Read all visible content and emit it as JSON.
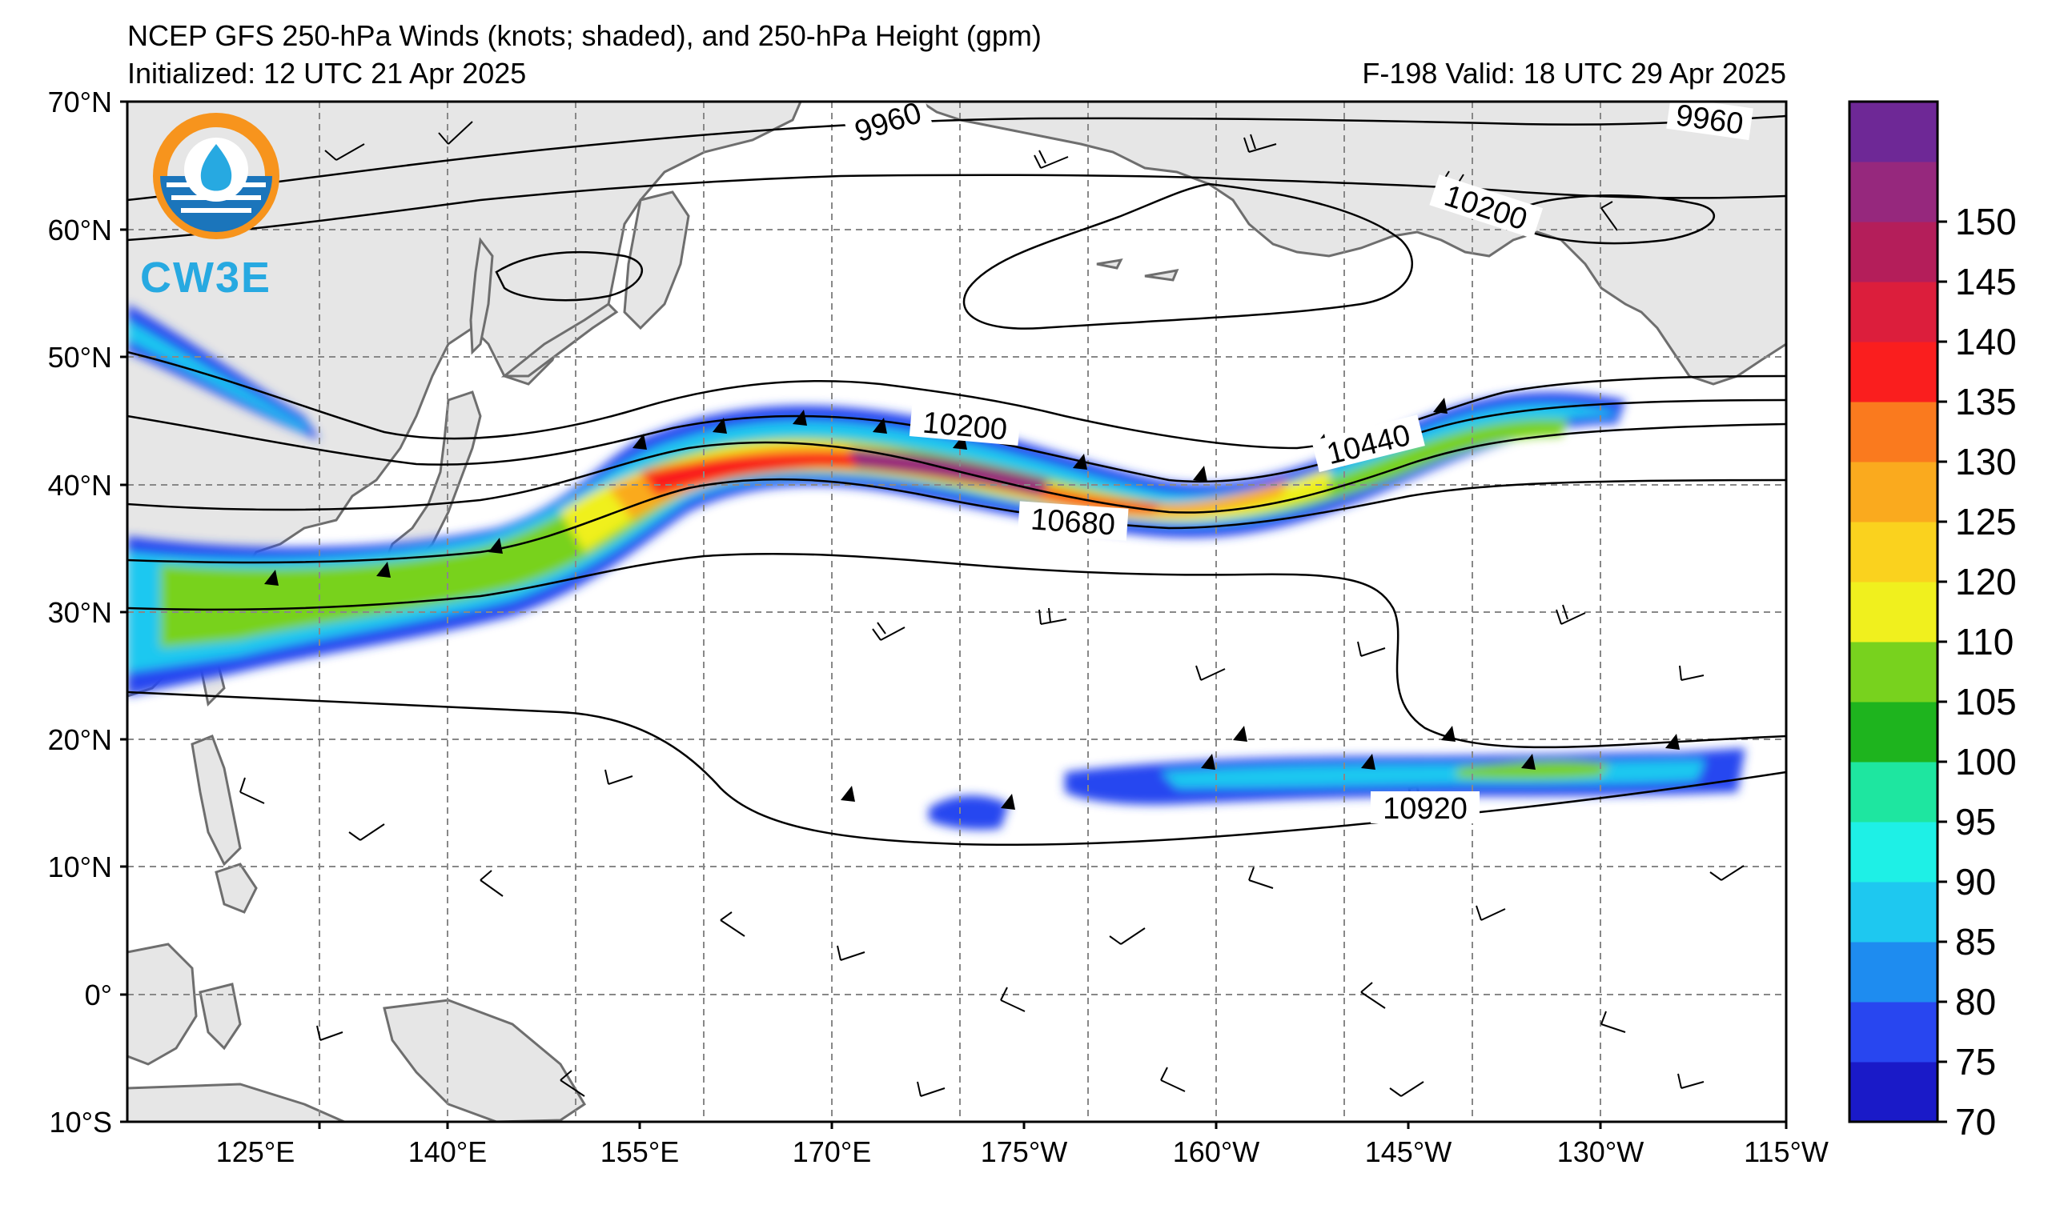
{
  "title": {
    "line1": "NCEP GFS 250-hPa Winds (knots; shaded), and 250-hPa Height (gpm)",
    "line2_left": "Initialized: 12 UTC 21 Apr 2025",
    "line2_right": "F-198  Valid: 18 UTC 29 Apr 2025"
  },
  "logo": {
    "text": "CW3E",
    "colors": [
      "#f7941d",
      "#1b75bb",
      "#27a9e1"
    ]
  },
  "map": {
    "projection": "equirectangular",
    "lon_range": [
      110,
      245
    ],
    "lat_range": [
      -10,
      70
    ],
    "lat_ticks": [
      "70°N",
      "60°N",
      "50°N",
      "40°N",
      "30°N",
      "20°N",
      "10°N",
      "0°",
      "10°S"
    ],
    "lon_ticks": [
      "125°E",
      "140°E",
      "155°E",
      "170°E",
      "175°W",
      "160°W",
      "145°W",
      "130°W",
      "115°W"
    ],
    "land_color": "#e6e6e6",
    "gridlines": "dashed"
  },
  "contour_labels": [
    "9960",
    "9960",
    "10200",
    "10200",
    "10440",
    "10680",
    "10920"
  ],
  "colorbar": {
    "levels": [
      70,
      75,
      80,
      85,
      90,
      95,
      100,
      105,
      110,
      120,
      125,
      130,
      135,
      140,
      145,
      150
    ],
    "tick_labels": [
      "70",
      "75",
      "80",
      "85",
      "90",
      "95",
      "100",
      "105",
      "110",
      "120",
      "125",
      "130",
      "135",
      "140",
      "145",
      "150"
    ],
    "colors": [
      "#1a1ac8",
      "#2846f0",
      "#1e8cf0",
      "#1ec8f0",
      "#1ef0e6",
      "#1ee6a0",
      "#1eb41e",
      "#78d21e",
      "#f0f01e",
      "#fad21e",
      "#faaa1e",
      "#fa7a1e",
      "#fa1e1e",
      "#dc1e3c",
      "#b41e5a",
      "#96287d",
      "#6e2896"
    ]
  }
}
